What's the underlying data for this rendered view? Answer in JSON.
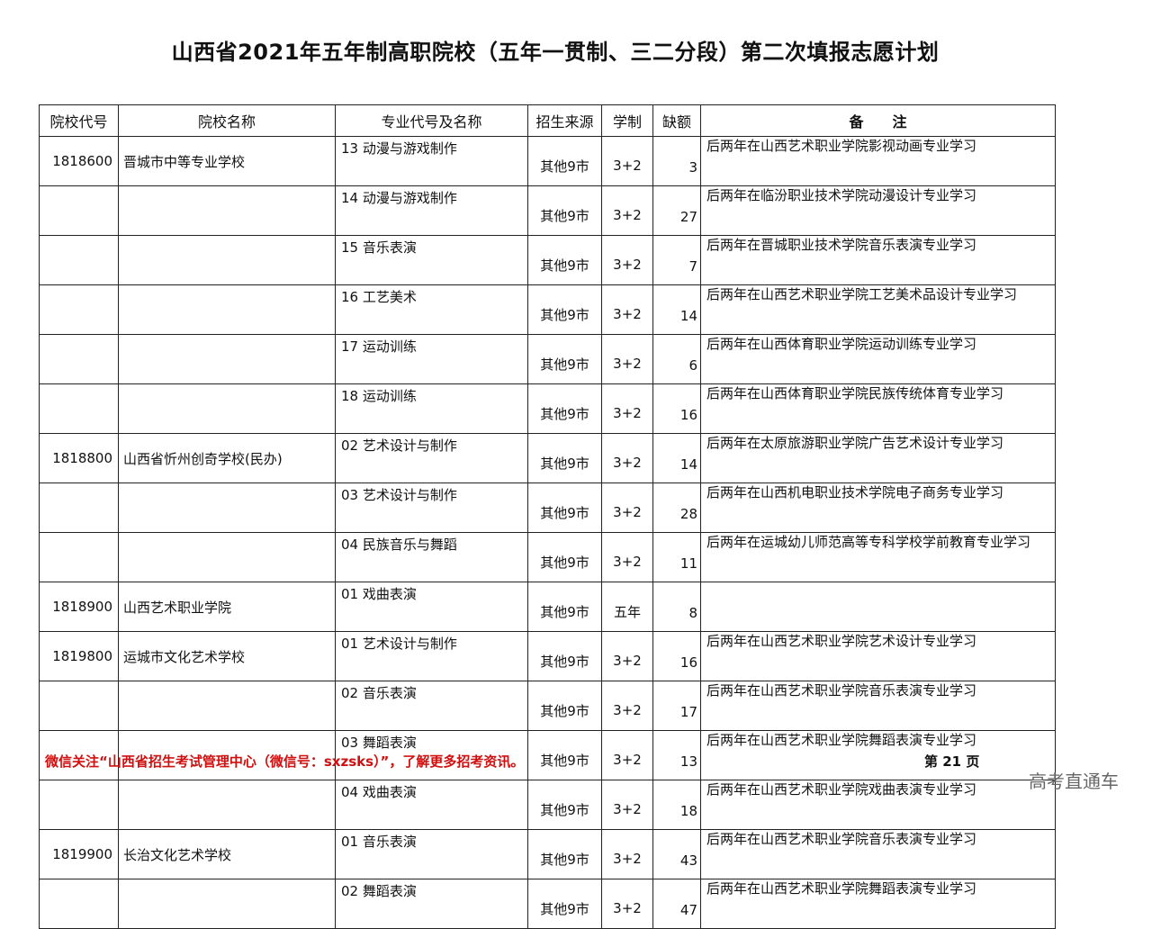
{
  "title": "山西省2021年五年制高职院校（五年一贯制、三二分段）第二次填报志愿计划",
  "table": {
    "headers": [
      "院校代号",
      "院校名称",
      "专业代号及名称",
      "招生来源",
      "学制",
      "缺额",
      "备　　注"
    ],
    "rows": [
      {
        "code": "1818600",
        "school": "晋城市中等专业学校",
        "major": "13 动漫与游戏制作",
        "source": "其他9市",
        "length": "3+2",
        "quota": "3",
        "note": "后两年在山西艺术职业学院影视动画专业学习"
      },
      {
        "code": "",
        "school": "",
        "major": "14 动漫与游戏制作",
        "source": "其他9市",
        "length": "3+2",
        "quota": "27",
        "note": "后两年在临汾职业技术学院动漫设计专业学习"
      },
      {
        "code": "",
        "school": "",
        "major": "15 音乐表演",
        "source": "其他9市",
        "length": "3+2",
        "quota": "7",
        "note": "后两年在晋城职业技术学院音乐表演专业学习"
      },
      {
        "code": "",
        "school": "",
        "major": "16 工艺美术",
        "source": "其他9市",
        "length": "3+2",
        "quota": "14",
        "note": "后两年在山西艺术职业学院工艺美术品设计专业学习"
      },
      {
        "code": "",
        "school": "",
        "major": "17 运动训练",
        "source": "其他9市",
        "length": "3+2",
        "quota": "6",
        "note": "后两年在山西体育职业学院运动训练专业学习"
      },
      {
        "code": "",
        "school": "",
        "major": "18 运动训练",
        "source": "其他9市",
        "length": "3+2",
        "quota": "16",
        "note": "后两年在山西体育职业学院民族传统体育专业学习"
      },
      {
        "code": "1818800",
        "school": "山西省忻州创奇学校(民办)",
        "major": "02 艺术设计与制作",
        "source": "其他9市",
        "length": "3+2",
        "quota": "14",
        "note": "后两年在太原旅游职业学院广告艺术设计专业学习"
      },
      {
        "code": "",
        "school": "",
        "major": "03 艺术设计与制作",
        "source": "其他9市",
        "length": "3+2",
        "quota": "28",
        "note": "后两年在山西机电职业技术学院电子商务专业学习"
      },
      {
        "code": "",
        "school": "",
        "major": "04 民族音乐与舞蹈",
        "source": "其他9市",
        "length": "3+2",
        "quota": "11",
        "note": "后两年在运城幼儿师范高等专科学校学前教育专业学习"
      },
      {
        "code": "1818900",
        "school": "山西艺术职业学院",
        "major": "01 戏曲表演",
        "source": "其他9市",
        "length": "五年",
        "quota": "8",
        "note": ""
      },
      {
        "code": "1819800",
        "school": "运城市文化艺术学校",
        "major": "01 艺术设计与制作",
        "source": "其他9市",
        "length": "3+2",
        "quota": "16",
        "note": "后两年在山西艺术职业学院艺术设计专业学习"
      },
      {
        "code": "",
        "school": "",
        "major": "02 音乐表演",
        "source": "其他9市",
        "length": "3+2",
        "quota": "17",
        "note": "后两年在山西艺术职业学院音乐表演专业学习"
      },
      {
        "code": "",
        "school": "",
        "major": "03 舞蹈表演",
        "source": "其他9市",
        "length": "3+2",
        "quota": "13",
        "note": "后两年在山西艺术职业学院舞蹈表演专业学习"
      },
      {
        "code": "",
        "school": "",
        "major": "04 戏曲表演",
        "source": "其他9市",
        "length": "3+2",
        "quota": "18",
        "note": "后两年在山西艺术职业学院戏曲表演专业学习"
      },
      {
        "code": "1819900",
        "school": "长治文化艺术学校",
        "major": "01 音乐表演",
        "source": "其他9市",
        "length": "3+2",
        "quota": "43",
        "note": "后两年在山西艺术职业学院音乐表演专业学习"
      },
      {
        "code": "",
        "school": "",
        "major": "02 舞蹈表演",
        "source": "其他9市",
        "length": "3+2",
        "quota": "47",
        "note": "后两年在山西艺术职业学院舞蹈表演专业学习"
      }
    ]
  },
  "footer": {
    "notice": "微信关注“山西省招生考试管理中心（微信号：sxzsks）”，了解更多招考资讯。",
    "notice_color": "#d01010",
    "page": "第 21 页"
  },
  "watermark": "高考直通车"
}
